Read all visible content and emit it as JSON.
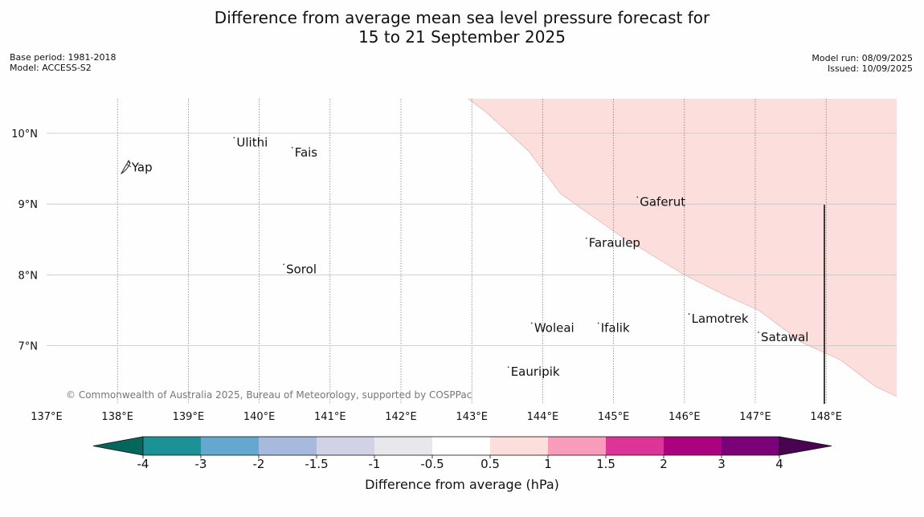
{
  "title": {
    "line1": "Difference from average mean sea level pressure forecast for",
    "line2": "15 to 21 September 2025"
  },
  "meta_left": {
    "base_period": "Base period: 1981-2018",
    "model": "Model: ACCESS-S2"
  },
  "meta_right": {
    "model_run": "Model run: 08/09/2025",
    "issued": "Issued: 10/09/2025"
  },
  "map": {
    "lon_ticks": [
      {
        "lon": 137,
        "label": "137°E"
      },
      {
        "lon": 138,
        "label": "138°E"
      },
      {
        "lon": 139,
        "label": "139°E"
      },
      {
        "lon": 140,
        "label": "140°E"
      },
      {
        "lon": 141,
        "label": "141°E"
      },
      {
        "lon": 142,
        "label": "142°E"
      },
      {
        "lon": 143,
        "label": "143°E"
      },
      {
        "lon": 144,
        "label": "144°E"
      },
      {
        "lon": 145,
        "label": "145°E"
      },
      {
        "lon": 146,
        "label": "146°E"
      },
      {
        "lon": 147,
        "label": "147°E"
      },
      {
        "lon": 148,
        "label": "148°E"
      }
    ],
    "lat_ticks": [
      {
        "lat": 10,
        "label": "10°N"
      },
      {
        "lat": 9,
        "label": "9°N"
      },
      {
        "lat": 8,
        "label": "8°N"
      },
      {
        "lat": 7,
        "label": "7°N"
      }
    ],
    "places": [
      {
        "name": "Yap",
        "lon": 138.2,
        "lat": 9.52
      },
      {
        "name": "Ulithi",
        "lon": 139.68,
        "lat": 9.87
      },
      {
        "name": "Fais",
        "lon": 140.5,
        "lat": 9.73
      },
      {
        "name": "Gaferut",
        "lon": 145.37,
        "lat": 9.03
      },
      {
        "name": "Faraulep",
        "lon": 144.65,
        "lat": 8.45
      },
      {
        "name": "Sorol",
        "lon": 140.38,
        "lat": 8.08
      },
      {
        "name": "Woleai",
        "lon": 143.88,
        "lat": 7.25
      },
      {
        "name": "Ifalik",
        "lon": 144.82,
        "lat": 7.25
      },
      {
        "name": "Lamotrek",
        "lon": 146.1,
        "lat": 7.38
      },
      {
        "name": "Satawal",
        "lon": 147.08,
        "lat": 7.12
      },
      {
        "name": "Eauripik",
        "lon": 143.55,
        "lat": 6.63
      }
    ],
    "anomaly_region": {
      "value_range_hPa": [
        0.5,
        1
      ],
      "color": "#fcdedd",
      "boundary": [
        [
          142.93,
          10.5
        ],
        [
          143.2,
          10.3
        ],
        [
          143.8,
          9.75
        ],
        [
          144.25,
          9.15
        ],
        [
          144.6,
          8.9
        ],
        [
          145.1,
          8.55
        ],
        [
          146.0,
          8.0
        ],
        [
          146.6,
          7.7
        ],
        [
          147.05,
          7.5
        ],
        [
          147.65,
          7.05
        ],
        [
          148.2,
          6.8
        ],
        [
          148.7,
          6.42
        ],
        [
          149.0,
          6.28
        ]
      ]
    },
    "copyright": "© Commonwealth of Australia 2025, Bureau of Meteorology, supported by COSPPac"
  },
  "colorbar": {
    "label": "Difference from average (hPa)",
    "tick_labels": [
      "-4",
      "-3",
      "-2",
      "-1.5",
      "-1",
      "-0.5",
      "0.5",
      "1",
      "1.5",
      "2",
      "3",
      "4"
    ],
    "under_color": "#05675c",
    "over_color": "#4a0350",
    "bin_colors": [
      "#1b9296",
      "#64a8d1",
      "#a7badd",
      "#d0d2e7",
      "#e8e7ec",
      "#ffffff",
      "#fcdedd",
      "#f99cbb",
      "#dd3497",
      "#ad0280",
      "#7a0177"
    ]
  }
}
